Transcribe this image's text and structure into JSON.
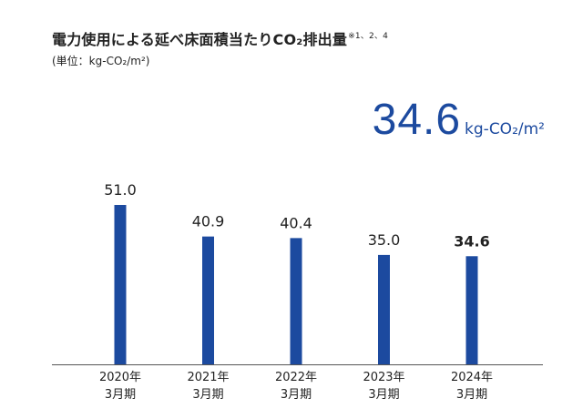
{
  "title": {
    "text": "電力使用による延べ床面積当たりCO₂排出量",
    "note_mark": "※1、2、4",
    "unit": "(単位：kg-CO₂/m²)"
  },
  "highlight": {
    "value": "34.6",
    "unit": "kg-CO₂/m²",
    "color": "#1c4a9f"
  },
  "chart_data": {
    "type": "bar",
    "categories": [
      [
        "2020年",
        "3月期"
      ],
      [
        "2021年",
        "3月期"
      ],
      [
        "2022年",
        "3月期"
      ],
      [
        "2023年",
        "3月期"
      ],
      [
        "2024年",
        "3月期"
      ]
    ],
    "values": [
      51.0,
      40.9,
      40.4,
      35.0,
      34.6
    ],
    "value_labels": [
      "51.0",
      "40.9",
      "40.4",
      "35.0",
      "34.6"
    ],
    "emphasized_index": 4,
    "bar_color": "#1c4a9f",
    "ylim": [
      0,
      51.0
    ],
    "grid": false,
    "legend": "none"
  }
}
